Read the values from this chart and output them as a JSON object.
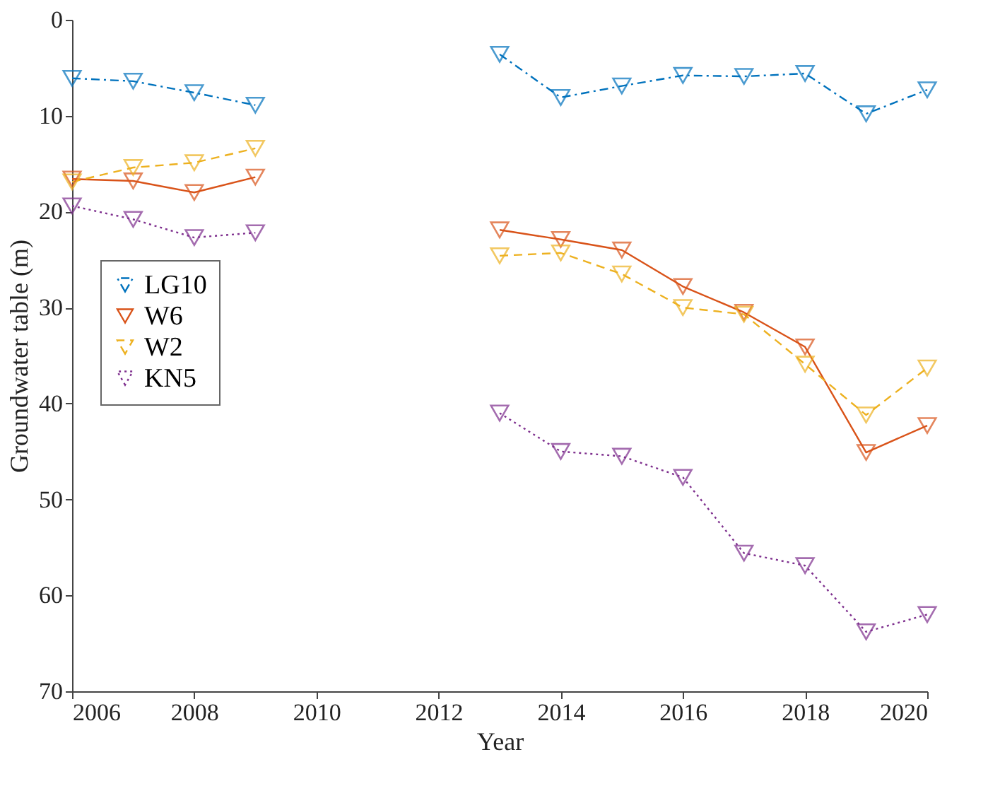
{
  "chart_data": {
    "type": "line",
    "xlabel": "Year",
    "ylabel": "Groundwater table (m)",
    "x": [
      2006,
      2007,
      2008,
      2009,
      2010,
      2011,
      2012,
      2013,
      2014,
      2015,
      2016,
      2017,
      2018,
      2019,
      2020
    ],
    "series": [
      {
        "name": "LG10",
        "color": "#0072bd",
        "line_style": "dashdot",
        "values": [
          6.1,
          6.4,
          7.6,
          8.9,
          null,
          null,
          null,
          3.6,
          8.1,
          6.9,
          5.8,
          5.9,
          5.6,
          9.8,
          7.3
        ]
      },
      {
        "name": "W6",
        "color": "#d95319",
        "line_style": "solid",
        "values": [
          16.6,
          16.8,
          18.0,
          16.4,
          null,
          null,
          null,
          21.9,
          22.9,
          24.0,
          27.8,
          30.5,
          34.1,
          45.1,
          42.3
        ]
      },
      {
        "name": "W2",
        "color": "#edb120",
        "line_style": "dashed",
        "values": [
          16.9,
          15.4,
          14.9,
          13.4,
          null,
          null,
          null,
          24.6,
          24.3,
          26.5,
          30.0,
          30.7,
          35.9,
          41.2,
          36.3
        ]
      },
      {
        "name": "KN5",
        "color": "#7e2f8e",
        "line_style": "dotted",
        "values": [
          19.4,
          20.8,
          22.7,
          22.2,
          null,
          null,
          null,
          41.0,
          45.0,
          45.5,
          47.7,
          55.6,
          56.9,
          63.8,
          62.0
        ]
      }
    ],
    "xlim": [
      2006,
      2020
    ],
    "xticks": [
      2006,
      2008,
      2010,
      2012,
      2014,
      2016,
      2018,
      2020
    ],
    "ylim": [
      70,
      0
    ],
    "yticks": [
      0,
      10,
      20,
      30,
      40,
      50,
      60,
      70
    ],
    "marker": "triangle-down",
    "legend": "left",
    "grid": false
  }
}
